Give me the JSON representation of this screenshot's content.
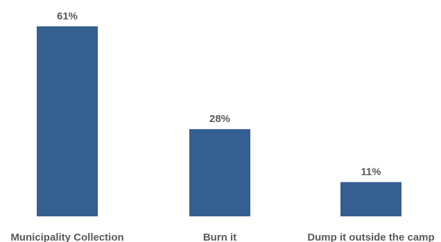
{
  "chart_data": {
    "type": "bar",
    "title": "",
    "xlabel": "",
    "ylabel": "",
    "categories": [
      "Municipality Collection",
      "Burn it",
      "Dump it outside the camp"
    ],
    "values": [
      61,
      28,
      11
    ],
    "value_labels": [
      "61%",
      "28%",
      "11%"
    ],
    "unit": "%",
    "ylim": [
      0,
      61
    ],
    "grid": false,
    "legend": "none",
    "bar_color": "#355E91"
  }
}
